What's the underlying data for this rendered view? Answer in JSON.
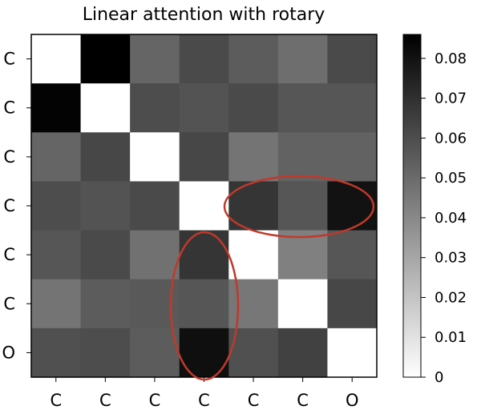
{
  "chart_data": {
    "type": "heatmap",
    "title": "Linear attention with rotary",
    "row_labels": [
      "C",
      "C",
      "C",
      "C",
      "C",
      "C",
      "O"
    ],
    "col_labels": [
      "C",
      "C",
      "C",
      "C",
      "C",
      "C",
      "O"
    ],
    "values": [
      [
        0.0,
        0.086,
        0.052,
        0.061,
        0.055,
        0.049,
        0.061
      ],
      [
        0.085,
        0.0,
        0.06,
        0.058,
        0.061,
        0.057,
        0.057
      ],
      [
        0.052,
        0.062,
        0.0,
        0.062,
        0.047,
        0.053,
        0.053
      ],
      [
        0.06,
        0.058,
        0.061,
        0.0,
        0.068,
        0.057,
        0.08
      ],
      [
        0.057,
        0.061,
        0.048,
        0.068,
        0.0,
        0.043,
        0.057
      ],
      [
        0.047,
        0.055,
        0.056,
        0.057,
        0.046,
        0.0,
        0.062
      ],
      [
        0.059,
        0.06,
        0.055,
        0.081,
        0.059,
        0.064,
        0.0
      ]
    ],
    "colorbar": {
      "min": 0,
      "max": 0.086,
      "ticks": [
        "0",
        "0.01",
        "0.02",
        "0.03",
        "0.04",
        "0.05",
        "0.06",
        "0.07",
        "0.08"
      ],
      "colormap": "white-to-black"
    },
    "annotations": [
      {
        "shape": "ellipse",
        "color": "#c0392b",
        "highlights": "row 4 (C), columns 5-7"
      },
      {
        "shape": "ellipse",
        "color": "#c0392b",
        "highlights": "column 4 (C), rows 5-7"
      }
    ]
  }
}
